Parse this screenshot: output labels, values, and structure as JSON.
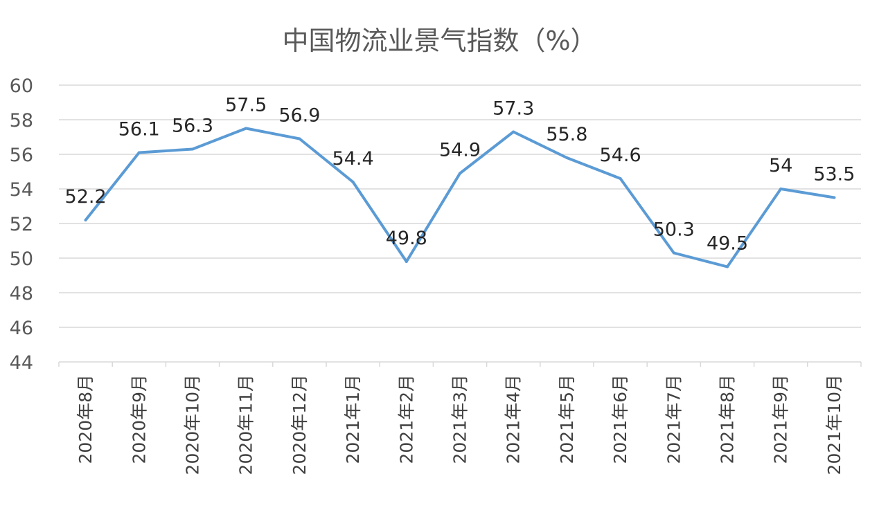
{
  "chart_data": {
    "type": "line",
    "title": "中国物流业景气指数（%）",
    "categories": [
      "2020年8月",
      "2020年9月",
      "2020年10月",
      "2020年11月",
      "2020年12月",
      "2021年1月",
      "2021年2月",
      "2021年3月",
      "2021年4月",
      "2021年5月",
      "2021年6月",
      "2021年7月",
      "2021年8月",
      "2021年9月",
      "2021年10月"
    ],
    "values": [
      52.2,
      56.1,
      56.3,
      57.5,
      56.9,
      54.4,
      49.8,
      54.9,
      57.3,
      55.8,
      54.6,
      50.3,
      49.5,
      54,
      53.5
    ],
    "value_labels": [
      "52.2",
      "56.1",
      "56.3",
      "57.5",
      "56.9",
      "54.4",
      "49.8",
      "54.9",
      "57.3",
      "55.8",
      "54.6",
      "50.3",
      "49.5",
      "54",
      "53.5"
    ],
    "ylim": [
      44,
      60
    ],
    "yticks": [
      "44",
      "46",
      "48",
      "50",
      "52",
      "54",
      "56",
      "58",
      "60"
    ],
    "grid": true,
    "legend": "none",
    "line_color": "#5B9BD5",
    "grid_color": "#D9D9D9"
  }
}
